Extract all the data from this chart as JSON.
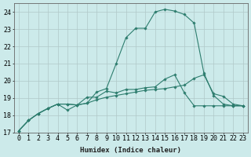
{
  "line1_x": [
    0,
    1,
    2,
    3,
    4,
    5,
    6,
    7,
    8,
    9,
    10,
    11,
    12,
    13,
    14,
    15,
    16,
    17,
    18,
    19,
    20,
    21,
    22,
    23
  ],
  "line1_y": [
    17.1,
    17.7,
    18.1,
    18.4,
    18.65,
    18.65,
    18.6,
    18.7,
    18.9,
    19.05,
    19.15,
    19.25,
    19.35,
    19.45,
    19.5,
    19.55,
    19.65,
    19.75,
    20.15,
    20.35,
    19.25,
    19.1,
    18.65,
    18.55
  ],
  "line2_x": [
    0,
    1,
    2,
    3,
    4,
    5,
    6,
    7,
    8,
    9,
    10,
    11,
    12,
    13,
    14,
    15,
    16,
    17,
    18,
    19,
    20,
    21,
    22,
    23
  ],
  "line2_y": [
    17.1,
    17.7,
    18.1,
    18.4,
    18.65,
    18.65,
    18.6,
    18.7,
    19.35,
    19.55,
    21.0,
    22.5,
    23.05,
    23.05,
    24.0,
    24.15,
    24.05,
    23.85,
    23.35,
    20.45,
    19.15,
    18.65,
    18.55,
    18.55
  ],
  "line3_x": [
    0,
    1,
    2,
    3,
    4,
    5,
    6,
    7,
    8,
    9,
    10,
    11,
    12,
    13,
    14,
    15,
    16,
    17,
    18,
    19,
    20,
    21,
    22,
    23
  ],
  "line3_y": [
    17.1,
    17.7,
    18.1,
    18.4,
    18.65,
    18.3,
    18.6,
    19.05,
    19.05,
    19.4,
    19.3,
    19.5,
    19.5,
    19.6,
    19.65,
    20.1,
    20.35,
    19.3,
    18.55,
    18.55,
    18.55,
    18.55,
    18.55,
    18.55
  ],
  "line_color": "#2d7d6e",
  "bg_color": "#cceaea",
  "grid_color": "#b0c8c8",
  "xlabel": "Humidex (Indice chaleur)",
  "ylim": [
    17,
    24.5
  ],
  "xlim": [
    -0.5,
    23.5
  ],
  "yticks": [
    17,
    18,
    19,
    20,
    21,
    22,
    23,
    24
  ],
  "xticks": [
    0,
    1,
    2,
    3,
    4,
    5,
    6,
    7,
    8,
    9,
    10,
    11,
    12,
    13,
    14,
    15,
    16,
    17,
    18,
    19,
    20,
    21,
    22,
    23
  ],
  "xlabel_fontsize": 6.5,
  "tick_fontsize": 6.0,
  "marker": "D",
  "markersize": 1.8,
  "linewidth": 0.8
}
